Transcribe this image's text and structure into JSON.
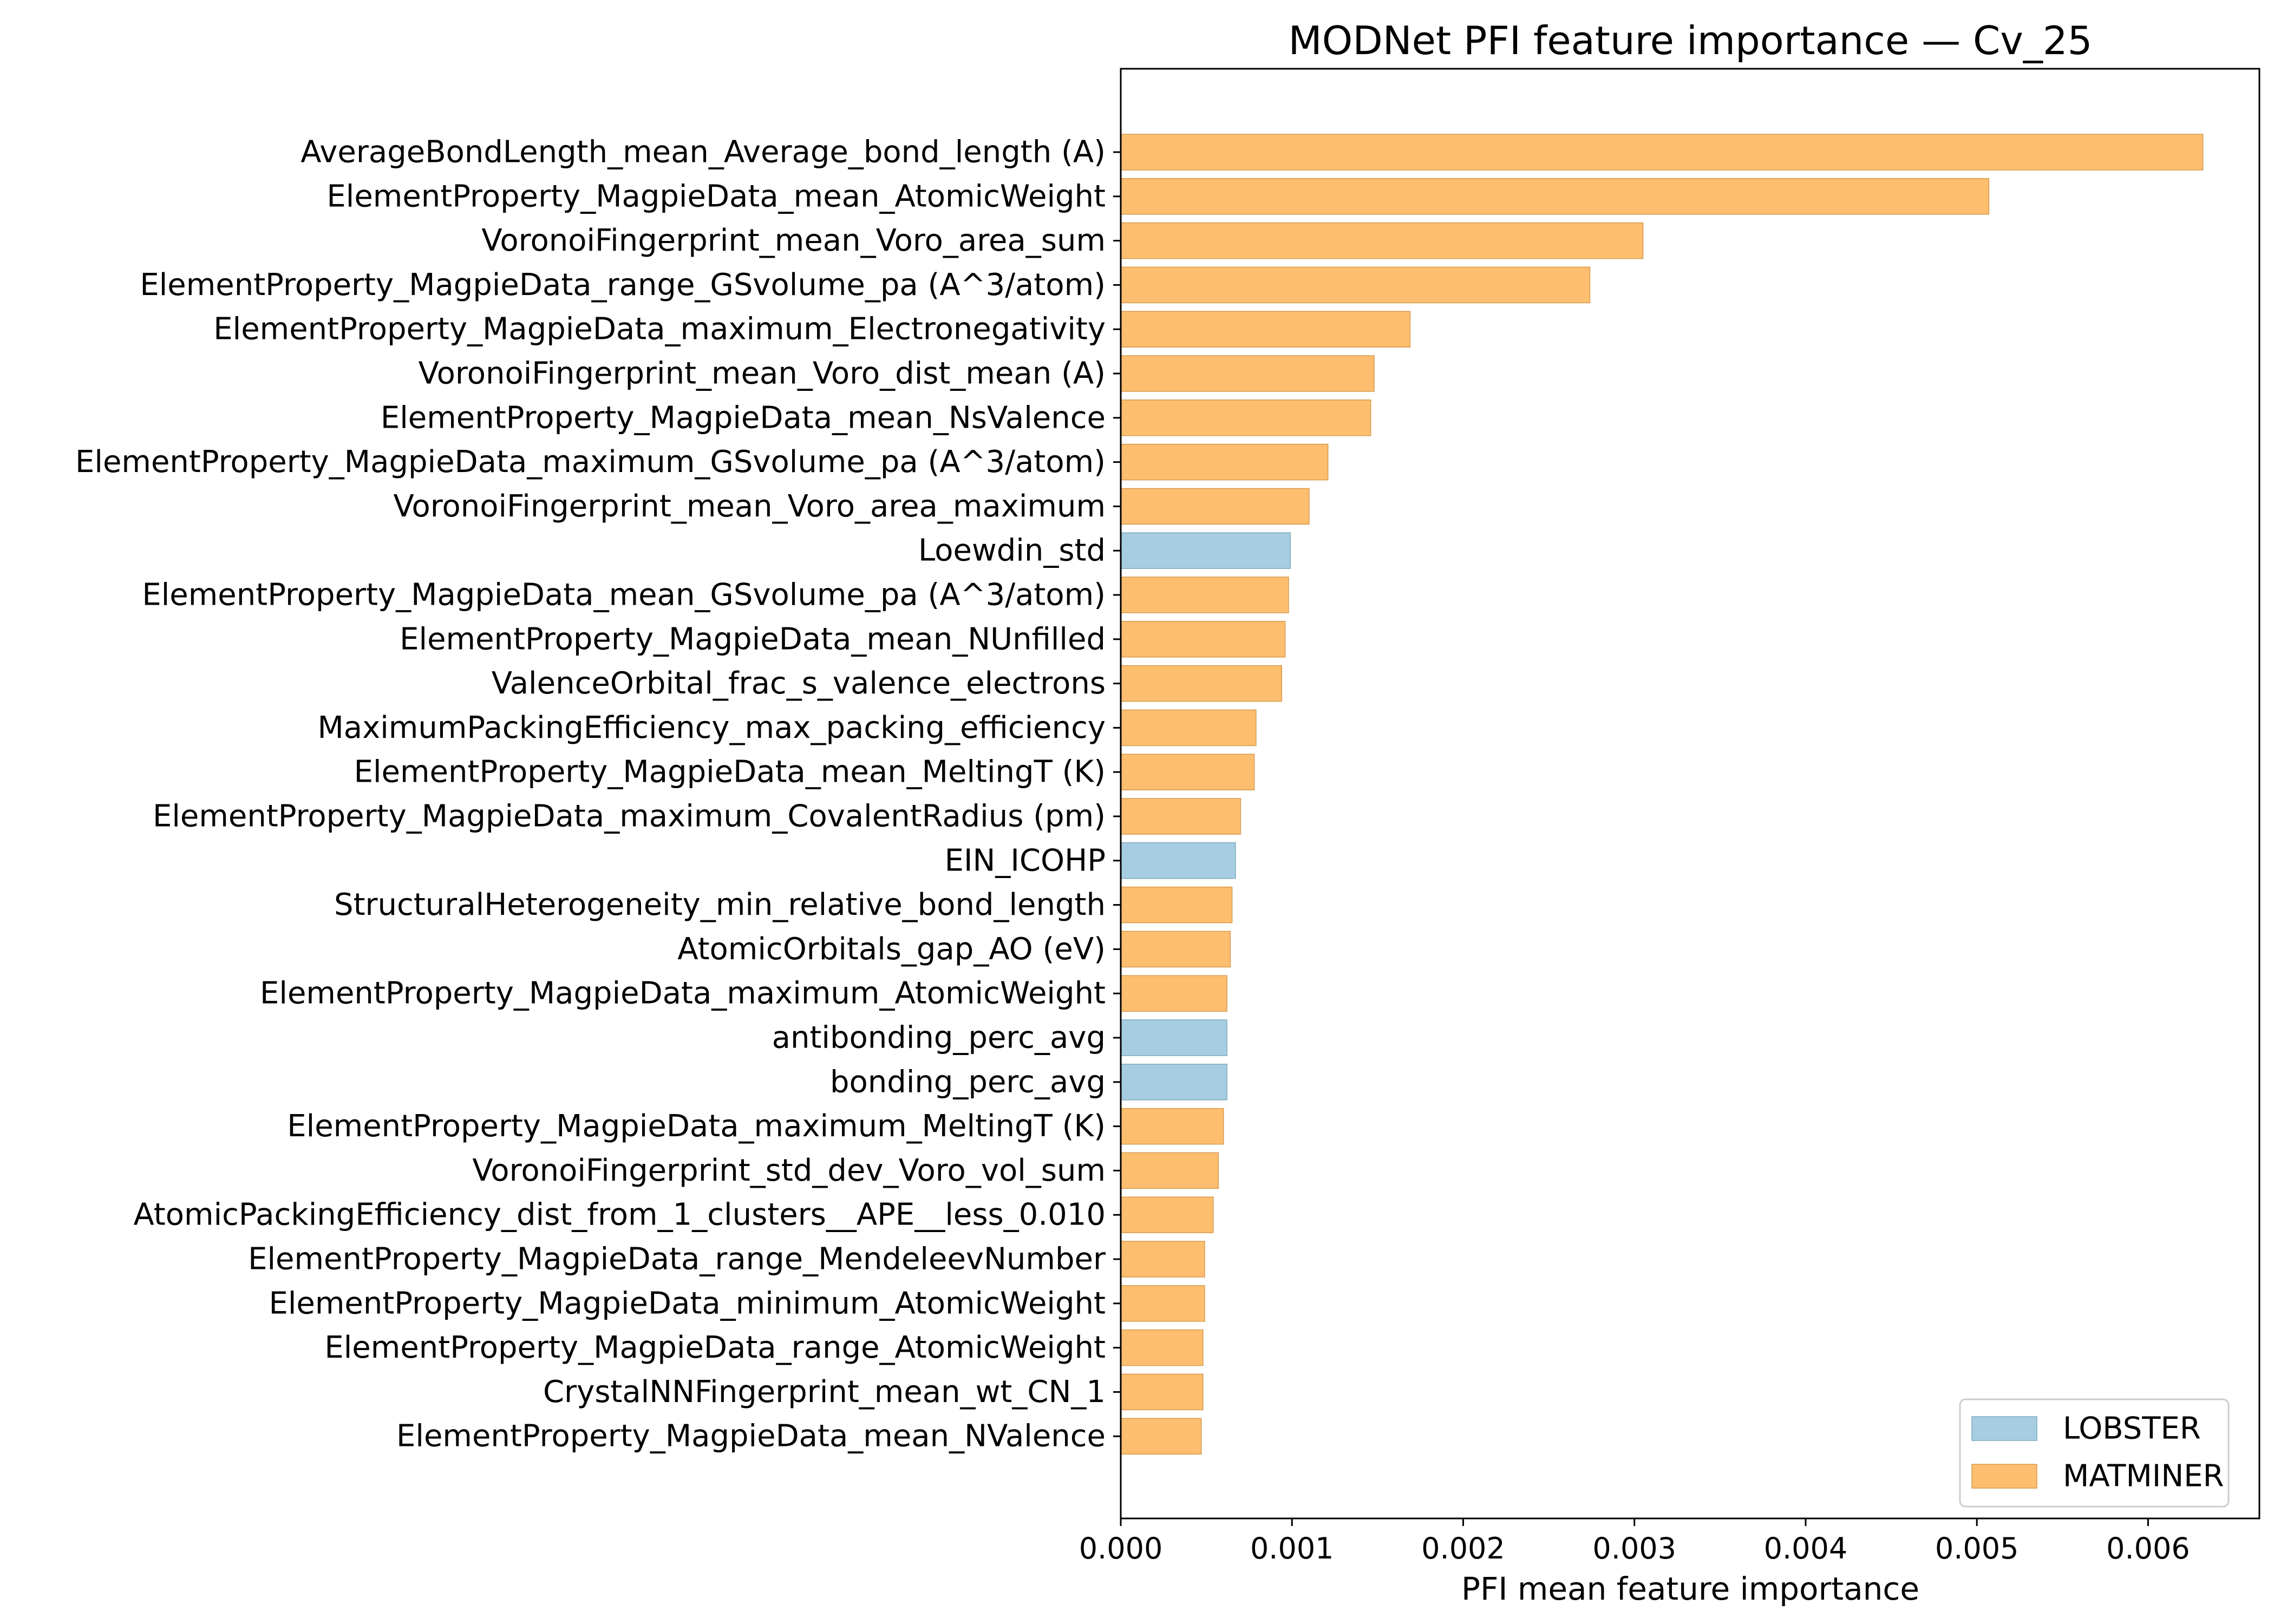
{
  "chart_data": {
    "type": "bar",
    "orientation": "horizontal",
    "title": "MODNet PFI feature importance — Cv_25",
    "xlabel": "PFI mean feature importance",
    "ylabel": "",
    "xlim": [
      0,
      0.00665
    ],
    "xticks": [
      "0.000",
      "0.001",
      "0.002",
      "0.003",
      "0.004",
      "0.005",
      "0.006"
    ],
    "legend_position": "bottom-right",
    "colors": {
      "LOBSTER": "#a6cde2",
      "MATMINER": "#fdbf6f"
    },
    "legend": [
      {
        "name": "LOBSTER",
        "color": "#a6cde2"
      },
      {
        "name": "MATMINER",
        "color": "#fdbf6f"
      }
    ],
    "bars": [
      {
        "label": "AverageBondLength_mean_Average_bond_length (A)",
        "value": 0.00632,
        "group": "MATMINER"
      },
      {
        "label": "ElementProperty_MagpieData_mean_AtomicWeight",
        "value": 0.00507,
        "group": "MATMINER"
      },
      {
        "label": "VoronoiFingerprint_mean_Voro_area_sum",
        "value": 0.00305,
        "group": "MATMINER"
      },
      {
        "label": "ElementProperty_MagpieData_range_GSvolume_pa (A^3/atom)",
        "value": 0.00274,
        "group": "MATMINER"
      },
      {
        "label": "ElementProperty_MagpieData_maximum_Electronegativity",
        "value": 0.00169,
        "group": "MATMINER"
      },
      {
        "label": "VoronoiFingerprint_mean_Voro_dist_mean (A)",
        "value": 0.00148,
        "group": "MATMINER"
      },
      {
        "label": "ElementProperty_MagpieData_mean_NsValence",
        "value": 0.00146,
        "group": "MATMINER"
      },
      {
        "label": "ElementProperty_MagpieData_maximum_GSvolume_pa (A^3/atom)",
        "value": 0.00121,
        "group": "MATMINER"
      },
      {
        "label": "VoronoiFingerprint_mean_Voro_area_maximum",
        "value": 0.0011,
        "group": "MATMINER"
      },
      {
        "label": "Loewdin_std",
        "value": 0.00099,
        "group": "LOBSTER"
      },
      {
        "label": "ElementProperty_MagpieData_mean_GSvolume_pa (A^3/atom)",
        "value": 0.00098,
        "group": "MATMINER"
      },
      {
        "label": "ElementProperty_MagpieData_mean_NUnfilled",
        "value": 0.00096,
        "group": "MATMINER"
      },
      {
        "label": "ValenceOrbital_frac_s_valence_electrons",
        "value": 0.00094,
        "group": "MATMINER"
      },
      {
        "label": "MaximumPackingEfficiency_max_packing_efficiency",
        "value": 0.00079,
        "group": "MATMINER"
      },
      {
        "label": "ElementProperty_MagpieData_mean_MeltingT (K)",
        "value": 0.00078,
        "group": "MATMINER"
      },
      {
        "label": "ElementProperty_MagpieData_maximum_CovalentRadius (pm)",
        "value": 0.0007,
        "group": "MATMINER"
      },
      {
        "label": "EIN_ICOHP",
        "value": 0.00067,
        "group": "LOBSTER"
      },
      {
        "label": "StructuralHeterogeneity_min_relative_bond_length",
        "value": 0.00065,
        "group": "MATMINER"
      },
      {
        "label": "AtomicOrbitals_gap_AO (eV)",
        "value": 0.00064,
        "group": "MATMINER"
      },
      {
        "label": "ElementProperty_MagpieData_maximum_AtomicWeight",
        "value": 0.00062,
        "group": "MATMINER"
      },
      {
        "label": "antibonding_perc_avg",
        "value": 0.00062,
        "group": "LOBSTER"
      },
      {
        "label": "bonding_perc_avg",
        "value": 0.00062,
        "group": "LOBSTER"
      },
      {
        "label": "ElementProperty_MagpieData_maximum_MeltingT (K)",
        "value": 0.0006,
        "group": "MATMINER"
      },
      {
        "label": "VoronoiFingerprint_std_dev_Voro_vol_sum",
        "value": 0.00057,
        "group": "MATMINER"
      },
      {
        "label": "AtomicPackingEfficiency_dist_from_1_clusters__APE__less_0.010",
        "value": 0.00054,
        "group": "MATMINER"
      },
      {
        "label": "ElementProperty_MagpieData_range_MendeleevNumber",
        "value": 0.00049,
        "group": "MATMINER"
      },
      {
        "label": "ElementProperty_MagpieData_minimum_AtomicWeight",
        "value": 0.00049,
        "group": "MATMINER"
      },
      {
        "label": "ElementProperty_MagpieData_range_AtomicWeight",
        "value": 0.00048,
        "group": "MATMINER"
      },
      {
        "label": "CrystalNNFingerprint_mean_wt_CN_1",
        "value": 0.00048,
        "group": "MATMINER"
      },
      {
        "label": "ElementProperty_MagpieData_mean_NValence",
        "value": 0.00047,
        "group": "MATMINER"
      }
    ]
  }
}
